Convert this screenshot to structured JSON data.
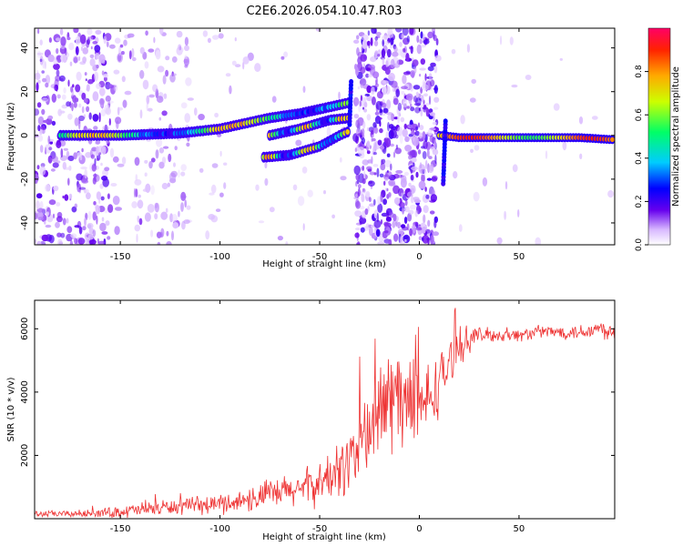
{
  "title": "C2E6.2026.054.10.47.R03",
  "chart_data": [
    {
      "type": "heatmap",
      "panel": "top",
      "xlabel": "Height of straight line (km)",
      "ylabel": "Frequency (Hz)",
      "xlim": [
        -193,
        98
      ],
      "ylim": [
        -50,
        49
      ],
      "xticks": [
        -150,
        -100,
        -50,
        0,
        50
      ],
      "yticks": [
        -40,
        -20,
        0,
        20,
        40
      ],
      "colorbar": {
        "label": "Normalized spectral amplitude",
        "range": [
          0,
          1
        ],
        "ticks": [
          0.0,
          0.2,
          0.4,
          0.6,
          0.8
        ]
      },
      "features": [
        {
          "name": "main band",
          "x": [
            -180,
            -150,
            -120,
            -100,
            -85,
            -75,
            -60,
            -45,
            -35
          ],
          "y": [
            0,
            0,
            1,
            3,
            6,
            8,
            10,
            13,
            15
          ]
        },
        {
          "name": "lower branch",
          "x": [
            -78,
            -65,
            -50,
            -40,
            -35
          ],
          "y": [
            -10,
            -9,
            -5,
            0,
            2
          ]
        },
        {
          "name": "middle branch",
          "x": [
            -75,
            -60,
            -45,
            -35
          ],
          "y": [
            0,
            3,
            7,
            8
          ]
        },
        {
          "name": "tail band",
          "x": [
            10,
            20,
            40,
            60,
            80,
            98
          ],
          "y": [
            0,
            -1,
            -1,
            -1,
            -1,
            -2
          ]
        }
      ]
    },
    {
      "type": "line",
      "panel": "bottom",
      "xlabel": "Height of straight line (km)",
      "ylabel": "SNR (10 * v/v)",
      "xlim": [
        -193,
        98
      ],
      "ylim": [
        0,
        6900
      ],
      "xticks": [
        -150,
        -100,
        -50,
        0,
        50
      ],
      "yticks": [
        2000,
        4000,
        6000
      ],
      "series": [
        {
          "name": "SNR",
          "color": "#ee3333",
          "x": [
            -193,
            -180,
            -170,
            -160,
            -150,
            -140,
            -130,
            -120,
            -110,
            -100,
            -90,
            -80,
            -70,
            -60,
            -50,
            -40,
            -35,
            -30,
            -25,
            -20,
            -15,
            -10,
            -5,
            0,
            5,
            10,
            15,
            20,
            25,
            30,
            40,
            50,
            60,
            70,
            80,
            90,
            98
          ],
          "values": [
            150,
            150,
            160,
            180,
            220,
            280,
            350,
            380,
            400,
            480,
            550,
            700,
            800,
            950,
            1100,
            1500,
            1900,
            2300,
            2800,
            3300,
            3800,
            3900,
            3600,
            3400,
            3800,
            4300,
            4900,
            5400,
            5700,
            5800,
            5800,
            5800,
            5900,
            5900,
            5900,
            6000,
            5900
          ],
          "spread": [
            120,
            120,
            140,
            160,
            250,
            280,
            300,
            300,
            320,
            380,
            420,
            550,
            600,
            700,
            800,
            1100,
            1300,
            1600,
            1900,
            2100,
            2200,
            2100,
            1800,
            1600,
            1400,
            1200,
            900,
            700,
            500,
            300,
            250,
            250,
            250,
            250,
            300,
            350,
            350
          ]
        }
      ]
    }
  ]
}
